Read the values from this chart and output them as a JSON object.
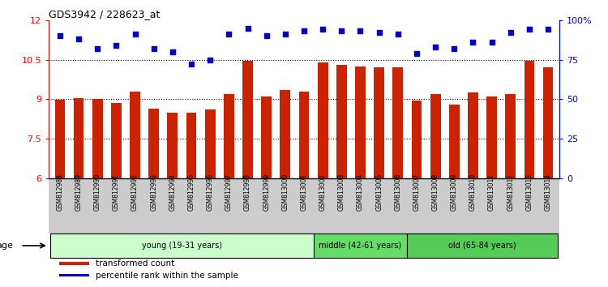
{
  "title": "GDS3942 / 228623_at",
  "samples": [
    "GSM812988",
    "GSM812989",
    "GSM812990",
    "GSM812991",
    "GSM812992",
    "GSM812993",
    "GSM812994",
    "GSM812995",
    "GSM812996",
    "GSM812997",
    "GSM812998",
    "GSM812999",
    "GSM813000",
    "GSM813001",
    "GSM813002",
    "GSM813003",
    "GSM813004",
    "GSM813005",
    "GSM813006",
    "GSM813007",
    "GSM813008",
    "GSM813009",
    "GSM813010",
    "GSM813011",
    "GSM813012",
    "GSM813013",
    "GSM813014"
  ],
  "bar_values": [
    8.98,
    9.05,
    9.0,
    8.85,
    9.3,
    8.65,
    8.5,
    8.5,
    8.6,
    9.2,
    10.45,
    9.1,
    9.35,
    9.3,
    10.4,
    10.3,
    10.25,
    10.2,
    10.2,
    8.95,
    9.2,
    8.8,
    9.25,
    9.1,
    9.2,
    10.45,
    10.2
  ],
  "percentile_values": [
    90,
    88,
    82,
    84,
    91,
    82,
    80,
    72,
    75,
    91,
    95,
    90,
    91,
    93,
    94,
    93,
    93,
    92,
    91,
    79,
    83,
    82,
    86,
    86,
    92,
    94,
    94
  ],
  "bar_color": "#cc2200",
  "percentile_color": "#0000cc",
  "ylim_left": [
    6,
    12
  ],
  "ylim_right": [
    0,
    100
  ],
  "yticks_left": [
    6,
    7.5,
    9,
    10.5,
    12
  ],
  "ytick_labels_left": [
    "6",
    "7.5",
    "9",
    "10.5",
    "12"
  ],
  "yticks_right": [
    0,
    25,
    50,
    75,
    100
  ],
  "ytick_labels_right": [
    "0",
    "25",
    "50",
    "75",
    "100%"
  ],
  "age_groups": [
    {
      "label": "young (19-31 years)",
      "start": 0,
      "end": 14,
      "color": "#ccffcc"
    },
    {
      "label": "middle (42-61 years)",
      "start": 14,
      "end": 19,
      "color": "#66dd66"
    },
    {
      "label": "old (65-84 years)",
      "start": 19,
      "end": 27,
      "color": "#55cc55"
    }
  ],
  "age_label": "age",
  "legend_bar_label": "transformed count",
  "legend_pct_label": "percentile rank within the sample",
  "plot_bg_color": "#ffffff",
  "xtick_bg_color": "#cccccc",
  "hline_values": [
    7.5,
    9.0,
    10.5
  ],
  "bar_width": 0.55
}
